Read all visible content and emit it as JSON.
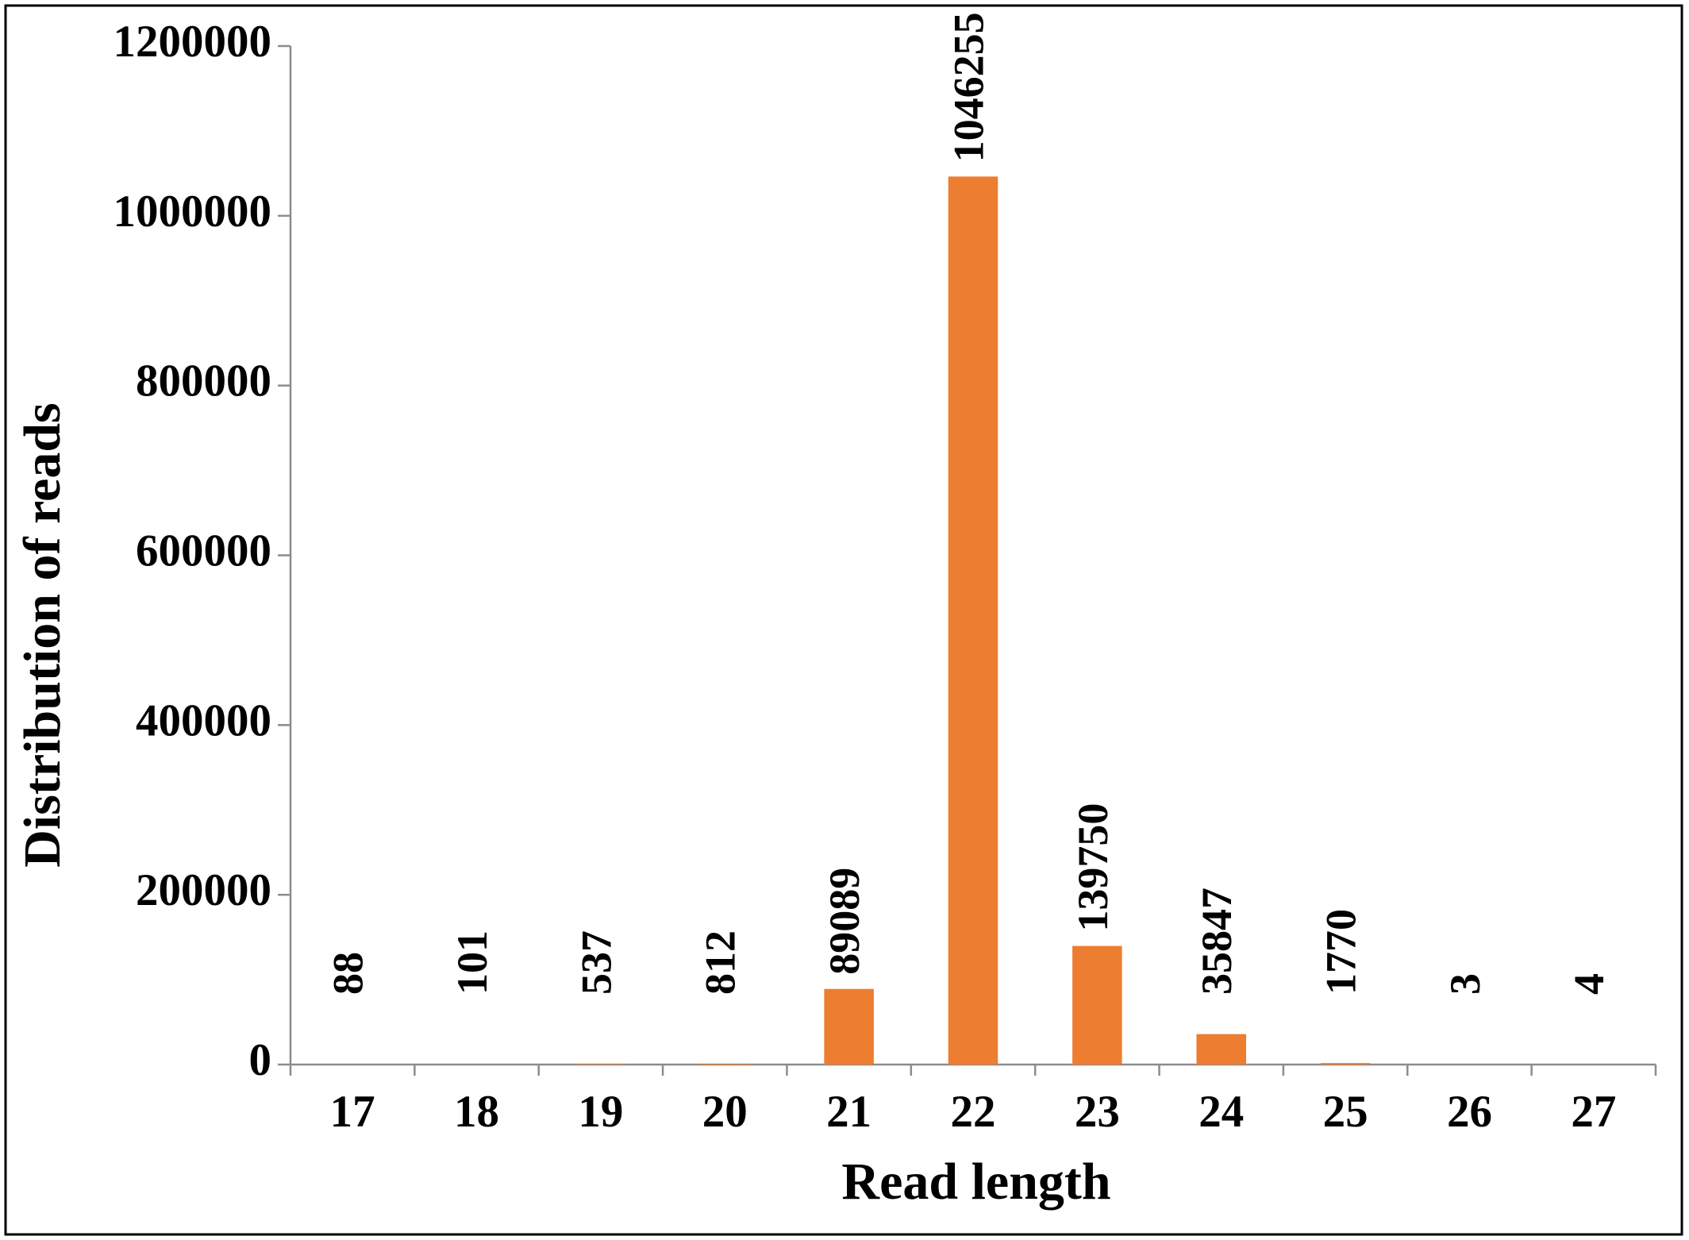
{
  "chart_data": {
    "type": "bar",
    "x_label": "Read length",
    "y_label": "Distribution of reads",
    "categories": [
      "17",
      "18",
      "19",
      "20",
      "21",
      "22",
      "23",
      "24",
      "25",
      "26",
      "27"
    ],
    "values": [
      88,
      101,
      537,
      812,
      89089,
      1046255,
      139750,
      35847,
      1770,
      3,
      4
    ],
    "color": "#ed7d31",
    "ylim": [
      0,
      1200000
    ],
    "yticks": [
      0,
      200000,
      400000,
      600000,
      800000,
      1000000,
      1200000
    ],
    "grid": false,
    "data_labels": true
  }
}
